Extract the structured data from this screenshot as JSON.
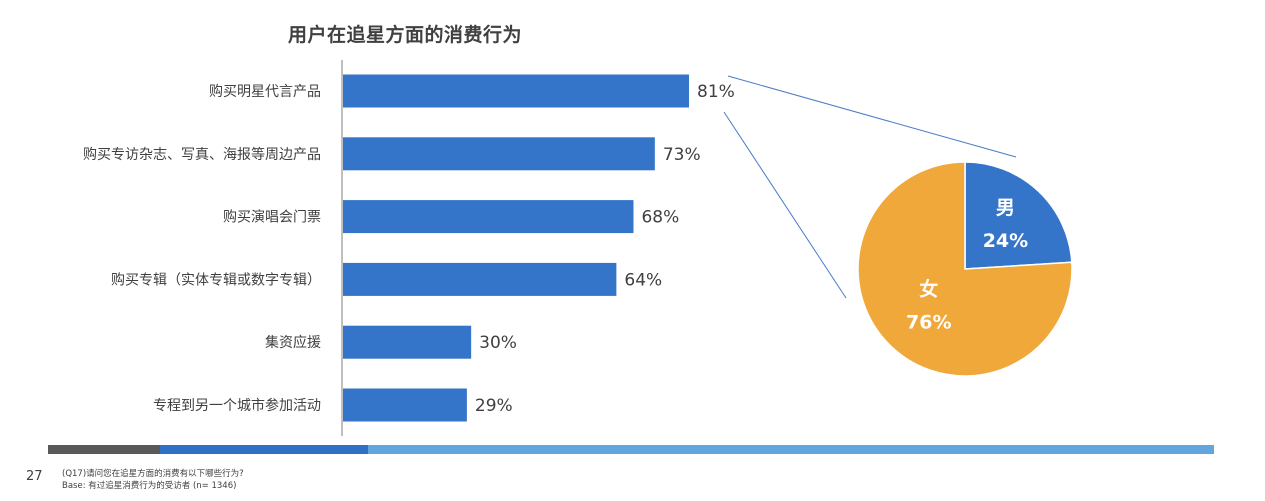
{
  "page": {
    "number": "27",
    "question_note": "(Q17)请问您在追星方面的消费有以下哪些行为?",
    "base_note": "Base: 有过追星消费行为的受访者 (n= 1346)"
  },
  "colors": {
    "bar": "#3474c9",
    "pie_male": "#3474c9",
    "pie_female": "#f0a83a",
    "axis": "#bfbfbf",
    "connector": "#4a7cc6",
    "footer_dark": "#595959",
    "footer_mid": "#2f6fc6",
    "footer_light": "#62a6dd"
  },
  "chart_data": [
    {
      "type": "bar",
      "orientation": "horizontal",
      "title": "用户在追星方面的消费行为",
      "categories": [
        "购买明星代言产品",
        "购买专访杂志、写真、海报等周边产品",
        "购买演唱会门票",
        "购买专辑（实体专辑或数字专辑）",
        "集资应援",
        "专程到另一个城市参加活动"
      ],
      "values": [
        81,
        73,
        68,
        64,
        30,
        29
      ],
      "value_labels": [
        "81%",
        "73%",
        "68%",
        "64%",
        "30%",
        "29%"
      ],
      "unit": "%",
      "xlim": [
        0,
        100
      ],
      "grid": false
    },
    {
      "type": "pie",
      "slices": [
        {
          "label": "男",
          "value": 24,
          "display": "24%"
        },
        {
          "label": "女",
          "value": 76,
          "display": "76%"
        }
      ],
      "start_angle_deg": 0,
      "direction": "clockwise"
    }
  ]
}
